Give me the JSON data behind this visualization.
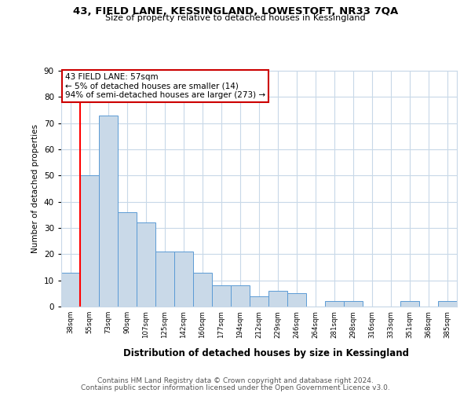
{
  "title1": "43, FIELD LANE, KESSINGLAND, LOWESTOFT, NR33 7QA",
  "title2": "Size of property relative to detached houses in Kessingland",
  "xlabel": "Distribution of detached houses by size in Kessingland",
  "ylabel": "Number of detached properties",
  "bar_values": [
    13,
    50,
    73,
    36,
    32,
    21,
    21,
    13,
    8,
    8,
    4,
    6,
    5,
    0,
    2,
    2,
    0,
    0,
    2,
    0,
    2
  ],
  "bar_labels": [
    "38sqm",
    "55sqm",
    "73sqm",
    "90sqm",
    "107sqm",
    "125sqm",
    "142sqm",
    "160sqm",
    "177sqm",
    "194sqm",
    "212sqm",
    "229sqm",
    "246sqm",
    "264sqm",
    "281sqm",
    "298sqm",
    "316sqm",
    "333sqm",
    "351sqm",
    "368sqm",
    "385sqm"
  ],
  "bar_color": "#c9d9e8",
  "bar_edge_color": "#5b9bd5",
  "red_line_index": 1,
  "annotation_text": "43 FIELD LANE: 57sqm\n← 5% of detached houses are smaller (14)\n94% of semi-detached houses are larger (273) →",
  "annotation_box_color": "#ffffff",
  "annotation_box_edge": "#cc0000",
  "ylim": [
    0,
    90
  ],
  "yticks": [
    0,
    10,
    20,
    30,
    40,
    50,
    60,
    70,
    80,
    90
  ],
  "footer1": "Contains HM Land Registry data © Crown copyright and database right 2024.",
  "footer2": "Contains public sector information licensed under the Open Government Licence v3.0.",
  "background_color": "#ffffff",
  "grid_color": "#c8d8e8"
}
